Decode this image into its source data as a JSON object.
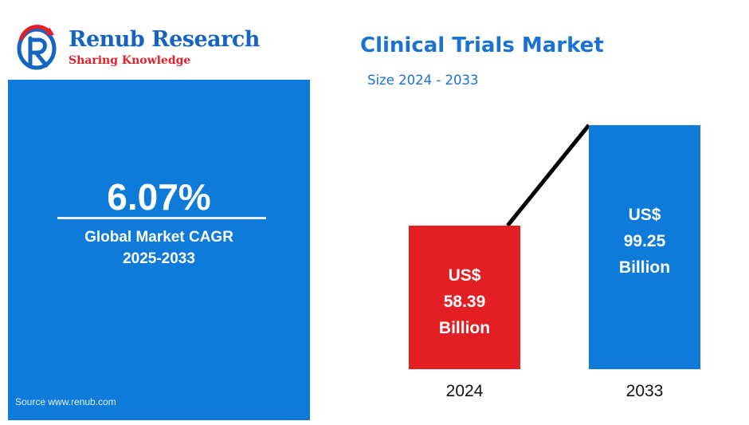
{
  "brand": {
    "name": "Renub Research",
    "tagline": "Sharing Knowledge",
    "colors": {
      "blue": "#1565c0",
      "red": "#e31f2a"
    }
  },
  "cagr": {
    "value": "6.07%",
    "label_line1": "Global Market CAGR",
    "label_line2": "2025-2033",
    "panel_color": "#0e7ad9"
  },
  "source": "Source  www.renub.com",
  "chart_data": {
    "type": "bar",
    "title": "Clinical Trials Market",
    "subtitle": "Size 2024 - 2033",
    "categories": [
      "2024",
      "2033"
    ],
    "values": [
      58.39,
      99.25
    ],
    "unit": "US$ Billion",
    "data_labels": [
      [
        "US$",
        "58.39",
        "Billion"
      ],
      [
        "US$",
        "99.25",
        "Billion"
      ]
    ],
    "bar_colors": [
      "#e31f24",
      "#0e7ad9"
    ],
    "connector": "line",
    "grid": false,
    "legend": "none",
    "ylim": [
      0,
      99.25
    ]
  }
}
